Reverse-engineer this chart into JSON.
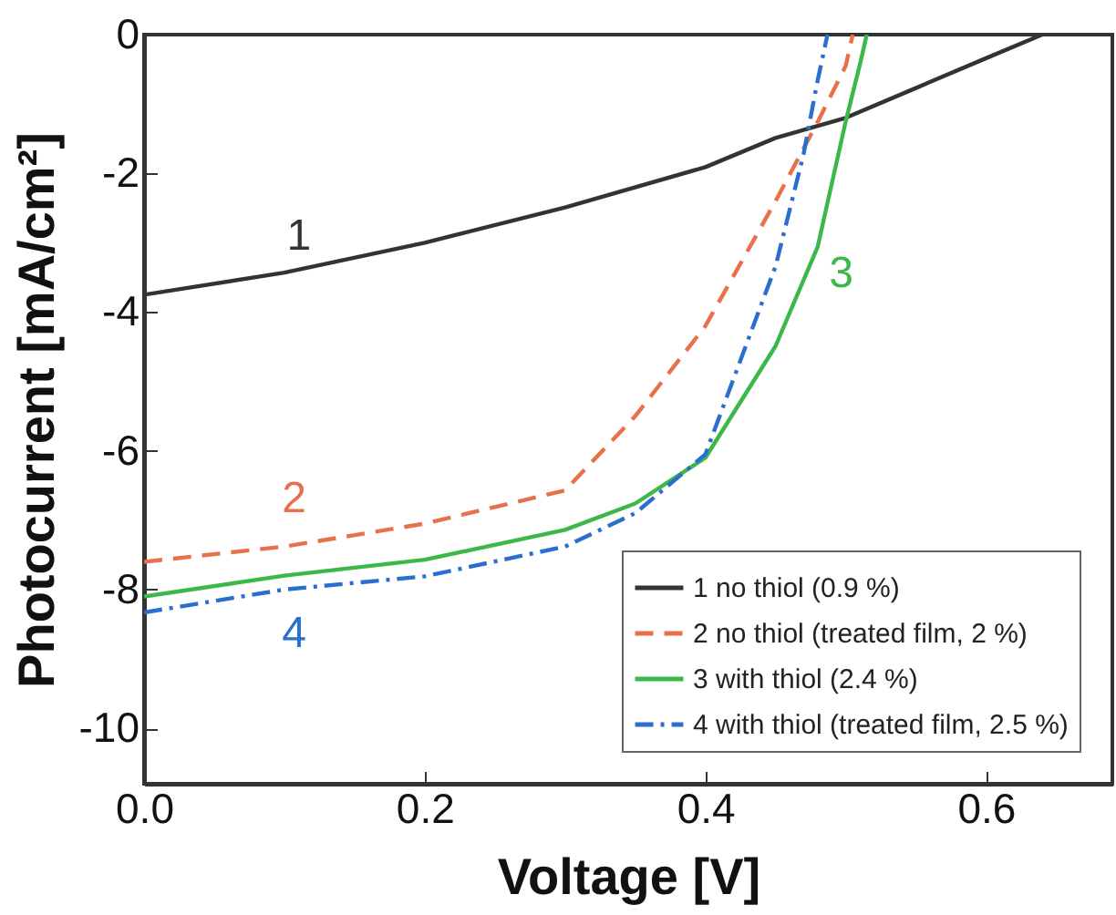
{
  "chart_data": {
    "type": "line",
    "xlabel": "Voltage [V]",
    "ylabel": "Photocurrent [mA/cm²]",
    "xlim": [
      0,
      0.69
    ],
    "ylim": [
      -10.8,
      0
    ],
    "xticks": [
      {
        "value": 0,
        "label": "0.0"
      },
      {
        "value": 0.2,
        "label": "0.2"
      },
      {
        "value": 0.4,
        "label": "0.4"
      },
      {
        "value": 0.6,
        "label": "0.6"
      }
    ],
    "yticks": [
      0,
      -2,
      -4,
      -6,
      -8,
      -10
    ],
    "grid": false,
    "legend": "bottom right",
    "series": [
      {
        "name": "1 no thiol (0.9 %)",
        "color": "#333333",
        "line_style": "solid",
        "x": [
          0,
          0.1,
          0.2,
          0.3,
          0.4,
          0.45,
          0.5,
          0.55,
          0.6,
          0.64
        ],
        "values": [
          -3.75,
          -3.43,
          -3.0,
          -2.49,
          -1.91,
          -1.49,
          -1.2,
          -0.77,
          -0.34,
          0
        ]
      },
      {
        "name": "2 no thiol (treated film, 2 %)",
        "color": "#e8704a",
        "line_style": "dashed",
        "x": [
          0,
          0.1,
          0.2,
          0.3,
          0.35,
          0.4,
          0.45,
          0.48,
          0.5,
          0.505
        ],
        "values": [
          -7.6,
          -7.38,
          -7.05,
          -6.57,
          -5.5,
          -4.2,
          -2.4,
          -1.26,
          -0.45,
          0
        ]
      },
      {
        "name": "3 with thiol (2.4 %)",
        "color": "#3cb84a",
        "line_style": "solid",
        "x": [
          0,
          0.1,
          0.2,
          0.3,
          0.35,
          0.4,
          0.45,
          0.48,
          0.5,
          0.51,
          0.515
        ],
        "values": [
          -8.1,
          -7.8,
          -7.57,
          -7.14,
          -6.76,
          -6.1,
          -4.49,
          -3.06,
          -1.25,
          -0.44,
          0
        ]
      },
      {
        "name": "4 with thiol (treated film, 2.5 %)",
        "color": "#2b6fce",
        "line_style": "dashdot",
        "x": [
          0,
          0.1,
          0.2,
          0.3,
          0.35,
          0.4,
          0.45,
          0.47,
          0.48,
          0.487
        ],
        "values": [
          -8.33,
          -8.0,
          -7.81,
          -7.38,
          -6.9,
          -6.05,
          -3.34,
          -1.72,
          -0.66,
          0
        ]
      }
    ],
    "annotations": [
      "1",
      "2",
      "3",
      "4"
    ]
  }
}
